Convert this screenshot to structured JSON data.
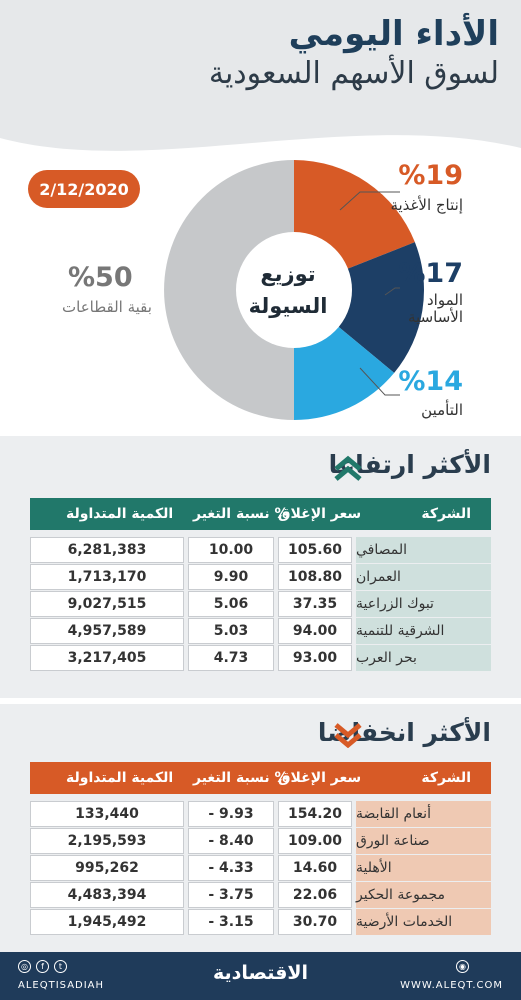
{
  "header": {
    "title_line1": "الأداء اليومي",
    "title_line2": "لسوق الأسهم السعودية",
    "date": "2/12/2020"
  },
  "liquidity": {
    "center_line1": "توزيع",
    "center_line2": "السيولة",
    "segments": [
      {
        "pct": "%19",
        "label": "إنتاج الأغذية",
        "value": 19,
        "color": "#d75a26"
      },
      {
        "pct": "%17",
        "label_line1": "المواد",
        "label_line2": "الأساسية",
        "value": 17,
        "color": "#1d3f66"
      },
      {
        "pct": "%14",
        "label": "التأمين",
        "value": 14,
        "color": "#2aa8e0"
      },
      {
        "pct": "%50",
        "label": "بقية القطاعات",
        "value": 50,
        "color": "#c6c8ca"
      }
    ]
  },
  "gainers": {
    "title": "الأكثر ارتفاعا",
    "accent": "#21786a",
    "headers": {
      "company": "الشركة",
      "close": "سعر الإغلاق",
      "change": "نسبة التغير %",
      "volume": "الكمية المتداولة"
    },
    "rows": [
      {
        "company": "المصافي",
        "close": "105.60",
        "change": "10.00",
        "volume": "6,281,383"
      },
      {
        "company": "العمران",
        "close": "108.80",
        "change": "9.90",
        "volume": "1,713,170"
      },
      {
        "company": "تبوك الزراعية",
        "close": "37.35",
        "change": "5.06",
        "volume": "9,027,515"
      },
      {
        "company": "الشرقية للتنمية",
        "close": "94.00",
        "change": "5.03",
        "volume": "4,957,589"
      },
      {
        "company": "بحر العرب",
        "close": "93.00",
        "change": "4.73",
        "volume": "3,217,405"
      }
    ]
  },
  "losers": {
    "title": "الأكثر انخفاضا",
    "accent": "#d75a26",
    "headers": {
      "company": "الشركة",
      "close": "سعر الإغلاق",
      "change": "نسبة التغير %",
      "volume": "الكمية المتداولة"
    },
    "rows": [
      {
        "company": "أنعام القابضة",
        "close": "154.20",
        "change": "- 9.93",
        "volume": "133,440"
      },
      {
        "company": "صناعة الورق",
        "close": "109.00",
        "change": "- 8.40",
        "volume": "2,195,593"
      },
      {
        "company": "الأهلية",
        "close": "14.60",
        "change": "- 4.33",
        "volume": "995,262"
      },
      {
        "company": "مجموعة الحكير",
        "close": "22.06",
        "change": "- 3.75",
        "volume": "4,483,394"
      },
      {
        "company": "الخدمات الأرضية",
        "close": "30.70",
        "change": "- 3.15",
        "volume": "1,945,492"
      }
    ]
  },
  "footer": {
    "handle": "ALEQTISADIAH",
    "logo": "الاقتصادية",
    "site": "WWW.ALEQT.COM"
  }
}
